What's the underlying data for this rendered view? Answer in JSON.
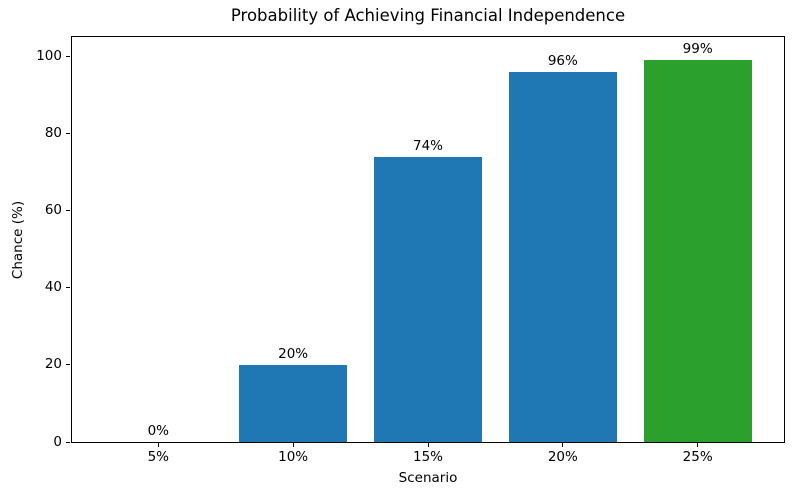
{
  "chart_data": {
    "type": "bar",
    "title": "Probability of Achieving Financial Independence",
    "xlabel": "Scenario",
    "ylabel": "Chance (%)",
    "categories": [
      "5%",
      "10%",
      "15%",
      "20%",
      "25%"
    ],
    "values": [
      0,
      20,
      74,
      96,
      99
    ],
    "bar_labels": [
      "0%",
      "20%",
      "74%",
      "96%",
      "99%"
    ],
    "bar_colors": [
      "#1f77b4",
      "#1f77b4",
      "#1f77b4",
      "#1f77b4",
      "#2ca02c"
    ],
    "yticks": [
      0,
      20,
      40,
      60,
      80,
      100
    ],
    "ylim": [
      0,
      105
    ],
    "bar_width_units": 0.8,
    "x_margin_units": 0.64,
    "grid": false,
    "legend": null,
    "spine_color": "#000000",
    "background_color": "#ffffff"
  }
}
